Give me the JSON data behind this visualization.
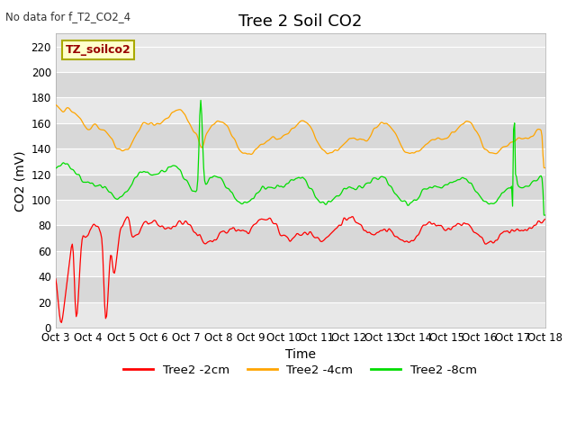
{
  "title": "Tree 2 Soil CO2",
  "subtitle": "No data for f_T2_CO2_4",
  "xlabel": "Time",
  "ylabel": "CO2 (mV)",
  "ylim": [
    0,
    230
  ],
  "yticks": [
    0,
    20,
    40,
    60,
    80,
    100,
    120,
    140,
    160,
    180,
    200,
    220
  ],
  "xtick_labels": [
    "Oct 3",
    "Oct 4",
    "Oct 5",
    "Oct 6",
    "Oct 7",
    "Oct 8",
    "Oct 9",
    "Oct 10",
    "Oct 11",
    "Oct 12",
    "Oct 13",
    "Oct 14",
    "Oct 15",
    "Oct 16",
    "Oct 17",
    "Oct 18"
  ],
  "legend_labels": [
    "Tree2 -2cm",
    "Tree2 -4cm",
    "Tree2 -8cm"
  ],
  "line_colors": [
    "#ff0000",
    "#ffa500",
    "#00dd00"
  ],
  "legend_box_color": "#ffffcc",
  "legend_box_edge": "#aaaa00",
  "watermark_label": "TZ_soilco2",
  "watermark_text_color": "#990000",
  "plot_bg_color": "#e8e8e8",
  "band_color_light": "#e8e8e8",
  "band_color_dark": "#d8d8d8",
  "n_points": 500,
  "title_fontsize": 13,
  "axis_label_fontsize": 10,
  "tick_fontsize": 8.5,
  "figwidth": 6.4,
  "figheight": 4.8,
  "dpi": 100
}
